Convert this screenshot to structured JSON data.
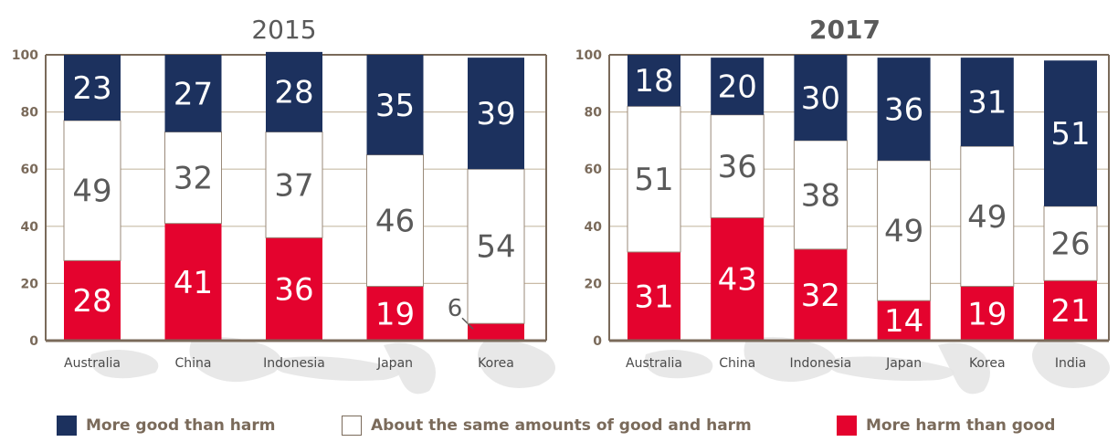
{
  "chart_data": [
    {
      "type": "bar",
      "stacked": true,
      "title": "2015",
      "categories": [
        "Australia",
        "China",
        "Indonesia",
        "Japan",
        "Korea"
      ],
      "series": [
        {
          "name": "More harm than good",
          "values": [
            28,
            41,
            36,
            19,
            6
          ]
        },
        {
          "name": "About the same amounts of good and harm",
          "values": [
            49,
            32,
            37,
            46,
            54
          ]
        },
        {
          "name": "More good than harm",
          "values": [
            23,
            27,
            28,
            35,
            39
          ]
        }
      ],
      "ylim": [
        0,
        100
      ],
      "yticks": [
        0,
        20,
        40,
        60,
        80,
        100
      ],
      "grid": true,
      "xlabel": "",
      "ylabel": ""
    },
    {
      "type": "bar",
      "stacked": true,
      "title": "2017",
      "categories": [
        "Australia",
        "China",
        "Indonesia",
        "Japan",
        "Korea",
        "India"
      ],
      "series": [
        {
          "name": "More harm than good",
          "values": [
            31,
            43,
            32,
            14,
            19,
            21
          ]
        },
        {
          "name": "About the same amounts of good and harm",
          "values": [
            51,
            36,
            38,
            49,
            49,
            26
          ]
        },
        {
          "name": "More good than harm",
          "values": [
            18,
            20,
            30,
            36,
            31,
            51
          ]
        }
      ],
      "ylim": [
        0,
        100
      ],
      "yticks": [
        0,
        20,
        40,
        60,
        80,
        100
      ],
      "grid": true,
      "xlabel": "",
      "ylabel": ""
    }
  ],
  "legend": {
    "placement": "bottom",
    "items": [
      {
        "label": "More good than harm",
        "color": "#1c315e"
      },
      {
        "label": "About the same amounts of good and harm",
        "color": "#ffffff"
      },
      {
        "label": "More harm than good",
        "color": "#e4032e"
      }
    ]
  },
  "colors": {
    "good": "#1c315e",
    "same": "#ffffff",
    "harm": "#e4032e",
    "axis": "#7a6a5a",
    "grid": "#c9bba6",
    "map": "#e6e6e6"
  }
}
